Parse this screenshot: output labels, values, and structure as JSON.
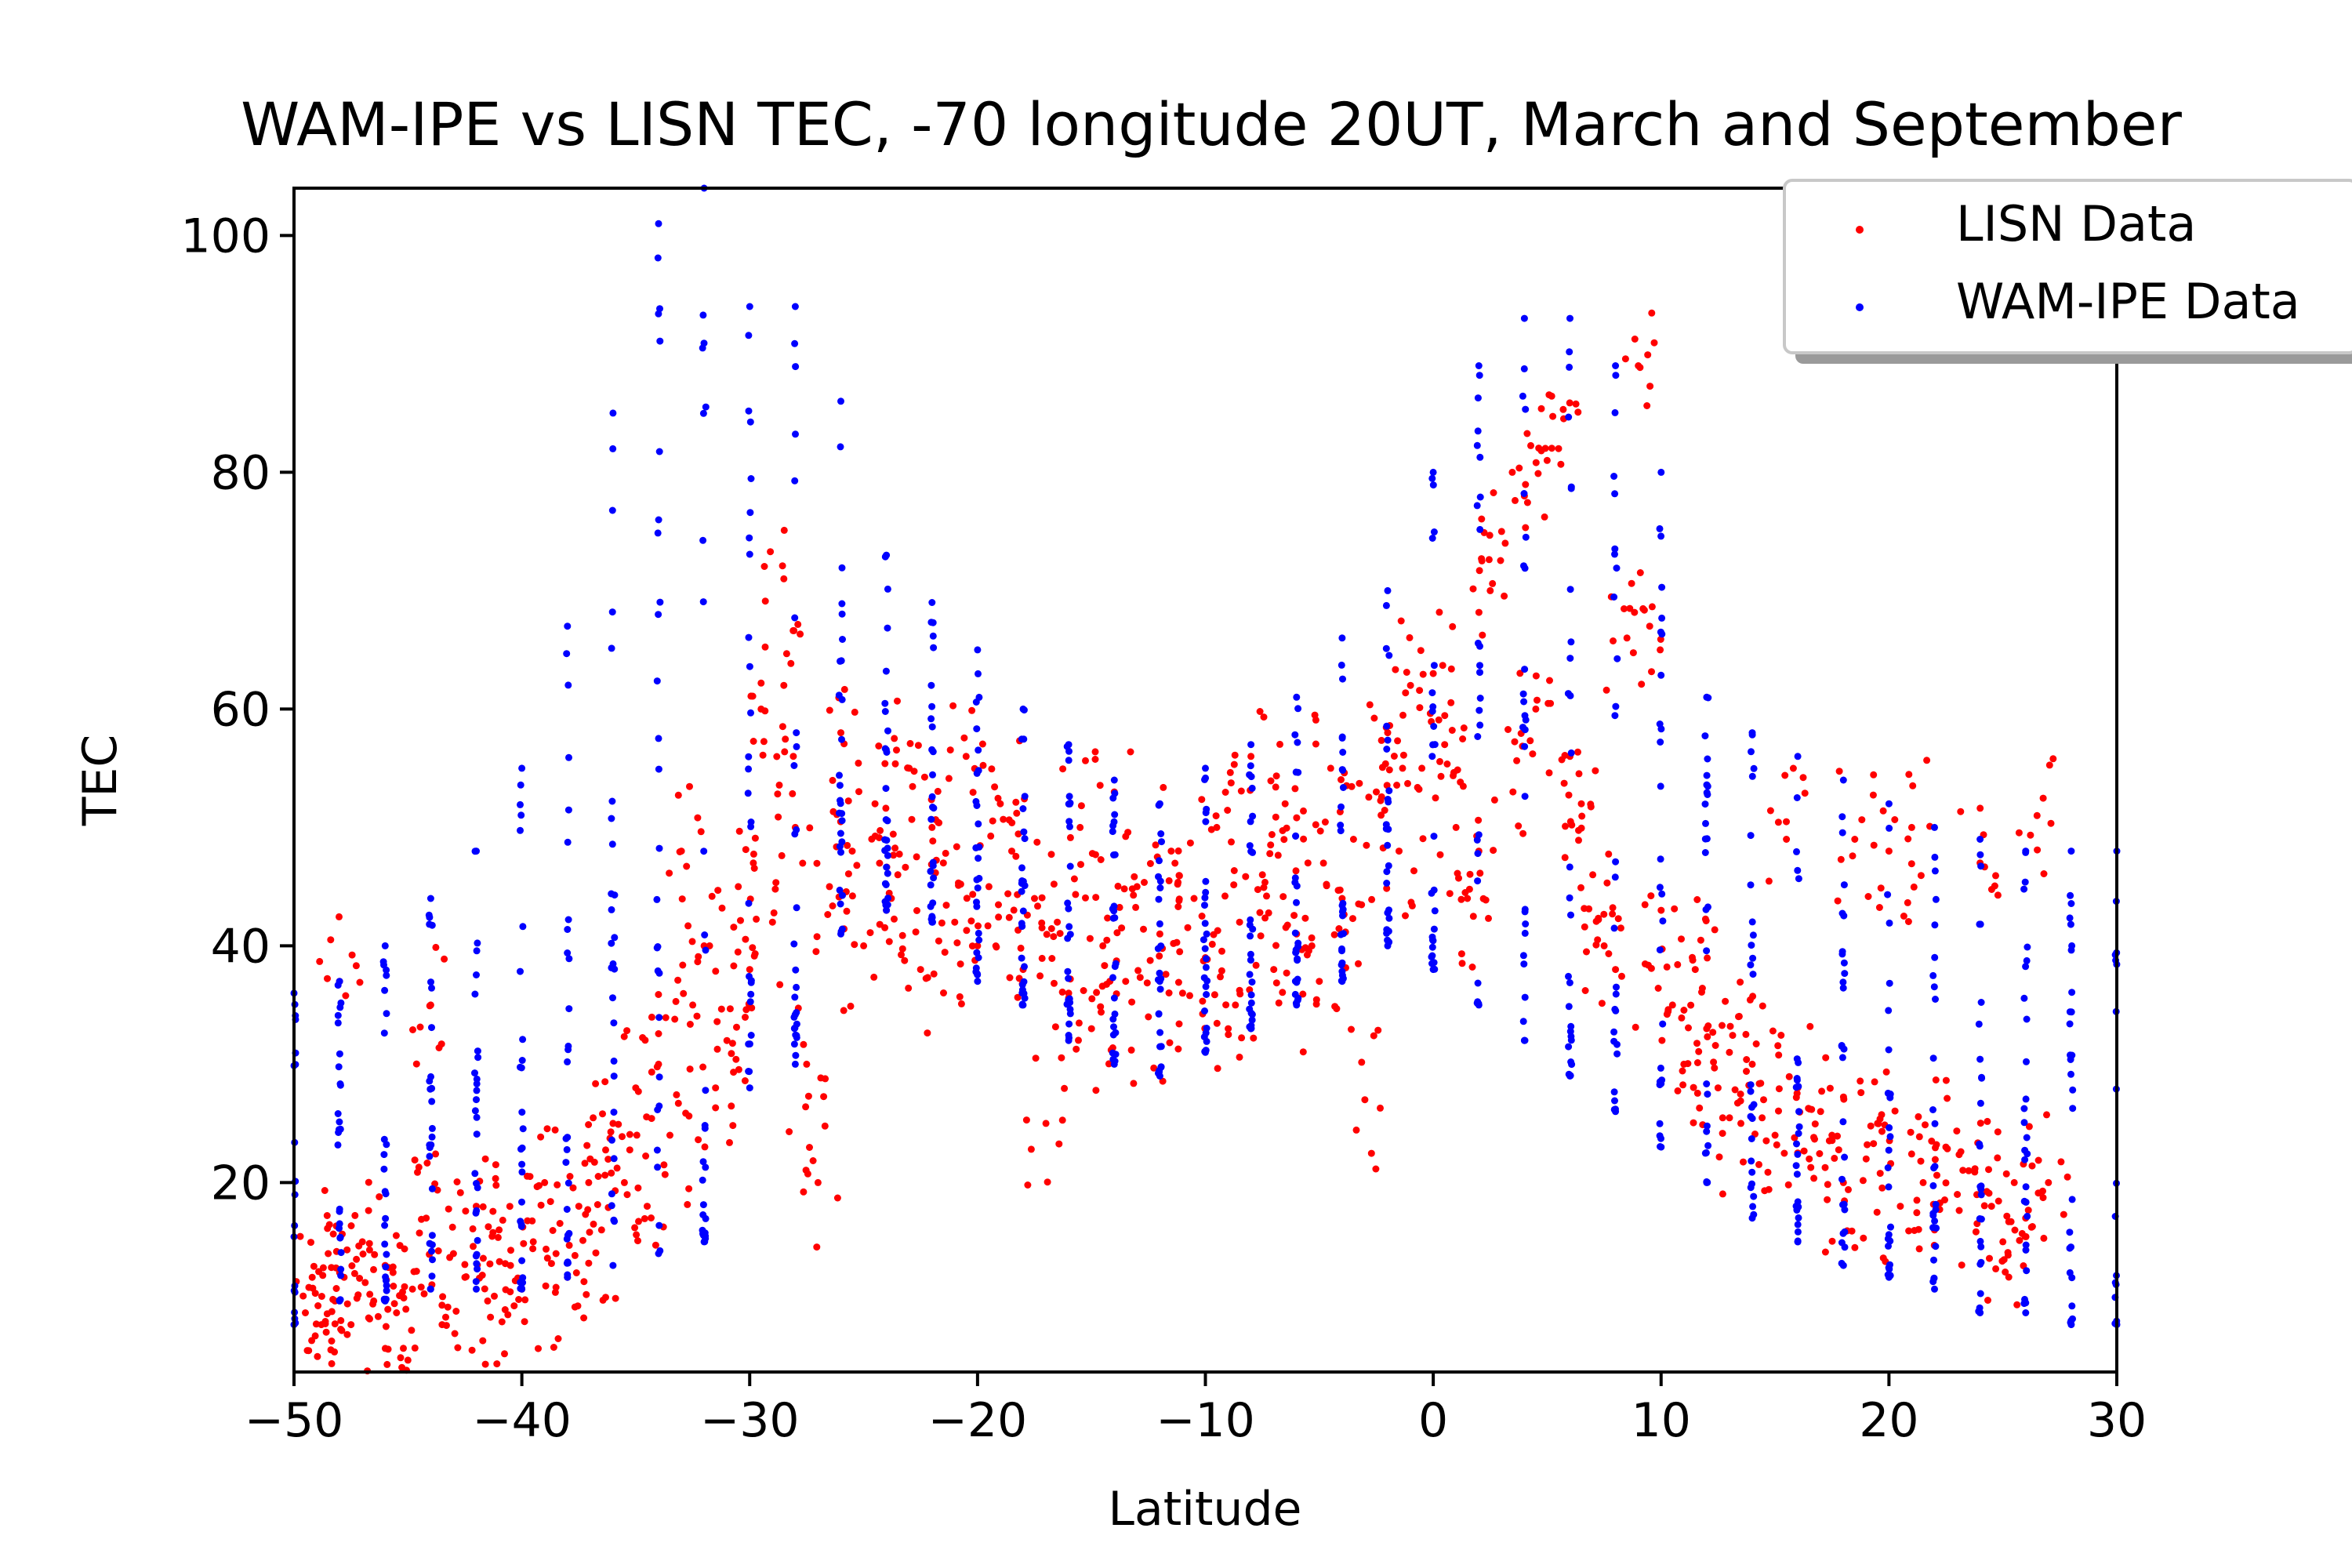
{
  "chart_data": {
    "type": "scatter",
    "title": "WAM-IPE vs LISN TEC, -70 longitude 20UT, March and September",
    "xlabel": "Latitude",
    "ylabel": "TEC",
    "xlim": [
      -50,
      30
    ],
    "ylim": [
      4,
      104
    ],
    "x_ticks": [
      -50,
      -40,
      -30,
      -20,
      -10,
      0,
      10,
      20,
      30
    ],
    "x_tick_labels": [
      "−50",
      "−40",
      "−30",
      "−20",
      "−10",
      "0",
      "10",
      "20",
      "30"
    ],
    "y_ticks": [
      20,
      40,
      60,
      80,
      100
    ],
    "y_tick_labels": [
      "20",
      "40",
      "60",
      "80",
      "100"
    ],
    "grid": false,
    "legend_position": "top-right",
    "series": [
      {
        "name": "LISN Data",
        "color": "#ff0000",
        "points": [
          [
            -49.5,
            9
          ],
          [
            -49.2,
            12
          ],
          [
            -48.8,
            8
          ],
          [
            -48.5,
            14
          ],
          [
            -48.2,
            10
          ],
          [
            -48,
            37
          ],
          [
            -47.8,
            12
          ],
          [
            -47.5,
            8
          ],
          [
            -47,
            15
          ],
          [
            -46.5,
            10
          ],
          [
            -46,
            13
          ],
          [
            -45.5,
            9
          ],
          [
            -45.2,
            6
          ],
          [
            -45,
            5
          ],
          [
            -44.8,
            11
          ],
          [
            -44.2,
            17
          ],
          [
            -44,
            35
          ],
          [
            -43.5,
            8
          ],
          [
            -43,
            14
          ],
          [
            -42.5,
            12
          ],
          [
            -42,
            18
          ],
          [
            -41.5,
            10
          ],
          [
            -41,
            16
          ],
          [
            -40.5,
            13
          ],
          [
            -40,
            11
          ],
          [
            -39.5,
            15
          ],
          [
            -39,
            20
          ],
          [
            -38.5,
            14
          ],
          [
            -38,
            12
          ],
          [
            -37.5,
            18
          ],
          [
            -37,
            22
          ],
          [
            -36.5,
            16
          ],
          [
            -36,
            25
          ],
          [
            -35.5,
            20
          ],
          [
            -35,
            28
          ],
          [
            -34.5,
            18
          ],
          [
            -34,
            30
          ],
          [
            -33.5,
            24
          ],
          [
            -33,
            48
          ],
          [
            -32.5,
            35
          ],
          [
            -32,
            40
          ],
          [
            -31.5,
            28
          ],
          [
            -31,
            32
          ],
          [
            -30.5,
            45
          ],
          [
            -30,
            38
          ],
          [
            -29.5,
            60
          ],
          [
            -29,
            42
          ],
          [
            -28.5,
            71
          ],
          [
            -28.5,
            62
          ],
          [
            -28,
            50
          ],
          [
            -27.5,
            30
          ],
          [
            -27,
            20
          ],
          [
            -26.5,
            45
          ],
          [
            -26,
            58
          ],
          [
            -25.5,
            48
          ],
          [
            -25,
            40
          ],
          [
            -24.5,
            52
          ],
          [
            -24,
            43
          ],
          [
            -23.5,
            46
          ],
          [
            -23,
            55
          ],
          [
            -22.5,
            38
          ],
          [
            -22,
            50
          ],
          [
            -21.5,
            47
          ],
          [
            -21,
            42
          ],
          [
            -20.5,
            56
          ],
          [
            -20,
            40
          ],
          [
            -19.5,
            45
          ],
          [
            -19,
            52
          ],
          [
            -18.5,
            48
          ],
          [
            -18,
            38
          ],
          [
            -17.5,
            44
          ],
          [
            -17,
            25
          ],
          [
            -16.5,
            42
          ],
          [
            -16,
            36
          ],
          [
            -15.5,
            50
          ],
          [
            -15,
            33
          ],
          [
            -14.5,
            40
          ],
          [
            -14,
            53
          ],
          [
            -13.5,
            37
          ],
          [
            -13,
            45
          ],
          [
            -12.5,
            34
          ],
          [
            -12,
            41
          ],
          [
            -11.5,
            48
          ],
          [
            -11,
            36
          ],
          [
            -10.5,
            44
          ],
          [
            -10,
            39
          ],
          [
            -9.5,
            50
          ],
          [
            -9,
            33
          ],
          [
            -8.5,
            42
          ],
          [
            -8,
            56
          ],
          [
            -7.5,
            46
          ],
          [
            -7,
            38
          ],
          [
            -6.5,
            52
          ],
          [
            -6,
            41
          ],
          [
            -5.5,
            47
          ],
          [
            -5,
            37
          ],
          [
            -4.5,
            55
          ],
          [
            -4,
            44
          ],
          [
            -3.5,
            49
          ],
          [
            -3,
            27
          ],
          [
            -2.5,
            53
          ],
          [
            -2,
            58
          ],
          [
            -1.5,
            48
          ],
          [
            -1,
            62
          ],
          [
            -0.5,
            55
          ],
          [
            0,
            63
          ],
          [
            0.5,
            57
          ],
          [
            1,
            50
          ],
          [
            1.5,
            44
          ],
          [
            2,
            48
          ],
          [
            2.5,
            70
          ],
          [
            3,
            75
          ],
          [
            3.5,
            53
          ],
          [
            4,
            78
          ],
          [
            4.5,
            60
          ],
          [
            5,
            81
          ],
          [
            5.5,
            82
          ],
          [
            6,
            56
          ],
          [
            6.5,
            52
          ],
          [
            7,
            46
          ],
          [
            7.5,
            40
          ],
          [
            8,
            38
          ],
          [
            8.5,
            66
          ],
          [
            9,
            89
          ],
          [
            9.5,
            67
          ],
          [
            10,
            43
          ],
          [
            10.5,
            35
          ],
          [
            11,
            30
          ],
          [
            11.5,
            38
          ],
          [
            12,
            33
          ],
          [
            12.5,
            28
          ],
          [
            13,
            31
          ],
          [
            13.5,
            25
          ],
          [
            14,
            30
          ],
          [
            14.5,
            27
          ],
          [
            15,
            24
          ],
          [
            15.5,
            49
          ],
          [
            16,
            28
          ],
          [
            16.5,
            22
          ],
          [
            17,
            26
          ],
          [
            17.5,
            24
          ],
          [
            18,
            20
          ],
          [
            18.5,
            49
          ],
          [
            19,
            22
          ],
          [
            19.5,
            25
          ],
          [
            20,
            48
          ],
          [
            20.5,
            18
          ],
          [
            21,
            50
          ],
          [
            21.5,
            20
          ],
          [
            22,
            16
          ],
          [
            22.5,
            23
          ],
          [
            23,
            19
          ],
          [
            23.5,
            21
          ],
          [
            24,
            47
          ],
          [
            24.5,
            18
          ],
          [
            25,
            15
          ],
          [
            25.5,
            20
          ],
          [
            26,
            17
          ],
          [
            26.5,
            51
          ],
          [
            27,
            20
          ]
        ]
      },
      {
        "name": "WAM-IPE Data",
        "color": "#0000ff",
        "columns": [
          {
            "x": -50,
            "min": 8,
            "max": 36
          },
          {
            "x": -48,
            "min": 10,
            "max": 37
          },
          {
            "x": -46,
            "min": 10,
            "max": 40
          },
          {
            "x": -44,
            "min": 11,
            "max": 44
          },
          {
            "x": -42,
            "min": 11,
            "max": 48
          },
          {
            "x": -40,
            "min": 11,
            "max": 55
          },
          {
            "x": -38,
            "min": 12,
            "max": 67
          },
          {
            "x": -36,
            "min": 13,
            "max": 85
          },
          {
            "x": -34,
            "min": 14,
            "max": 101
          },
          {
            "x": -32,
            "min": 15,
            "max": 104
          },
          {
            "x": -30,
            "min": 28,
            "max": 94
          },
          {
            "x": -28,
            "min": 30,
            "max": 94
          },
          {
            "x": -26,
            "min": 41,
            "max": 86
          },
          {
            "x": -24,
            "min": 43,
            "max": 73
          },
          {
            "x": -22,
            "min": 42,
            "max": 69
          },
          {
            "x": -20,
            "min": 37,
            "max": 65
          },
          {
            "x": -18,
            "min": 35,
            "max": 60
          },
          {
            "x": -16,
            "min": 32,
            "max": 57
          },
          {
            "x": -14,
            "min": 30,
            "max": 54
          },
          {
            "x": -12,
            "min": 29,
            "max": 52
          },
          {
            "x": -10,
            "min": 31,
            "max": 55
          },
          {
            "x": -8,
            "min": 33,
            "max": 57
          },
          {
            "x": -6,
            "min": 35,
            "max": 61
          },
          {
            "x": -4,
            "min": 37,
            "max": 66
          },
          {
            "x": -2,
            "min": 40,
            "max": 70
          },
          {
            "x": 0,
            "min": 38,
            "max": 80
          },
          {
            "x": 2,
            "min": 35,
            "max": 89
          },
          {
            "x": 4,
            "min": 32,
            "max": 93
          },
          {
            "x": 6,
            "min": 29,
            "max": 93
          },
          {
            "x": 8,
            "min": 26,
            "max": 89
          },
          {
            "x": 10,
            "min": 23,
            "max": 80
          },
          {
            "x": 12,
            "min": 20,
            "max": 61
          },
          {
            "x": 14,
            "min": 17,
            "max": 58
          },
          {
            "x": 16,
            "min": 15,
            "max": 56
          },
          {
            "x": 18,
            "min": 13,
            "max": 54
          },
          {
            "x": 20,
            "min": 12,
            "max": 52
          },
          {
            "x": 22,
            "min": 11,
            "max": 50
          },
          {
            "x": 24,
            "min": 9,
            "max": 49
          },
          {
            "x": 26,
            "min": 9,
            "max": 48
          },
          {
            "x": 28,
            "min": 8,
            "max": 48
          },
          {
            "x": 30,
            "min": 8,
            "max": 48
          }
        ]
      }
    ]
  }
}
